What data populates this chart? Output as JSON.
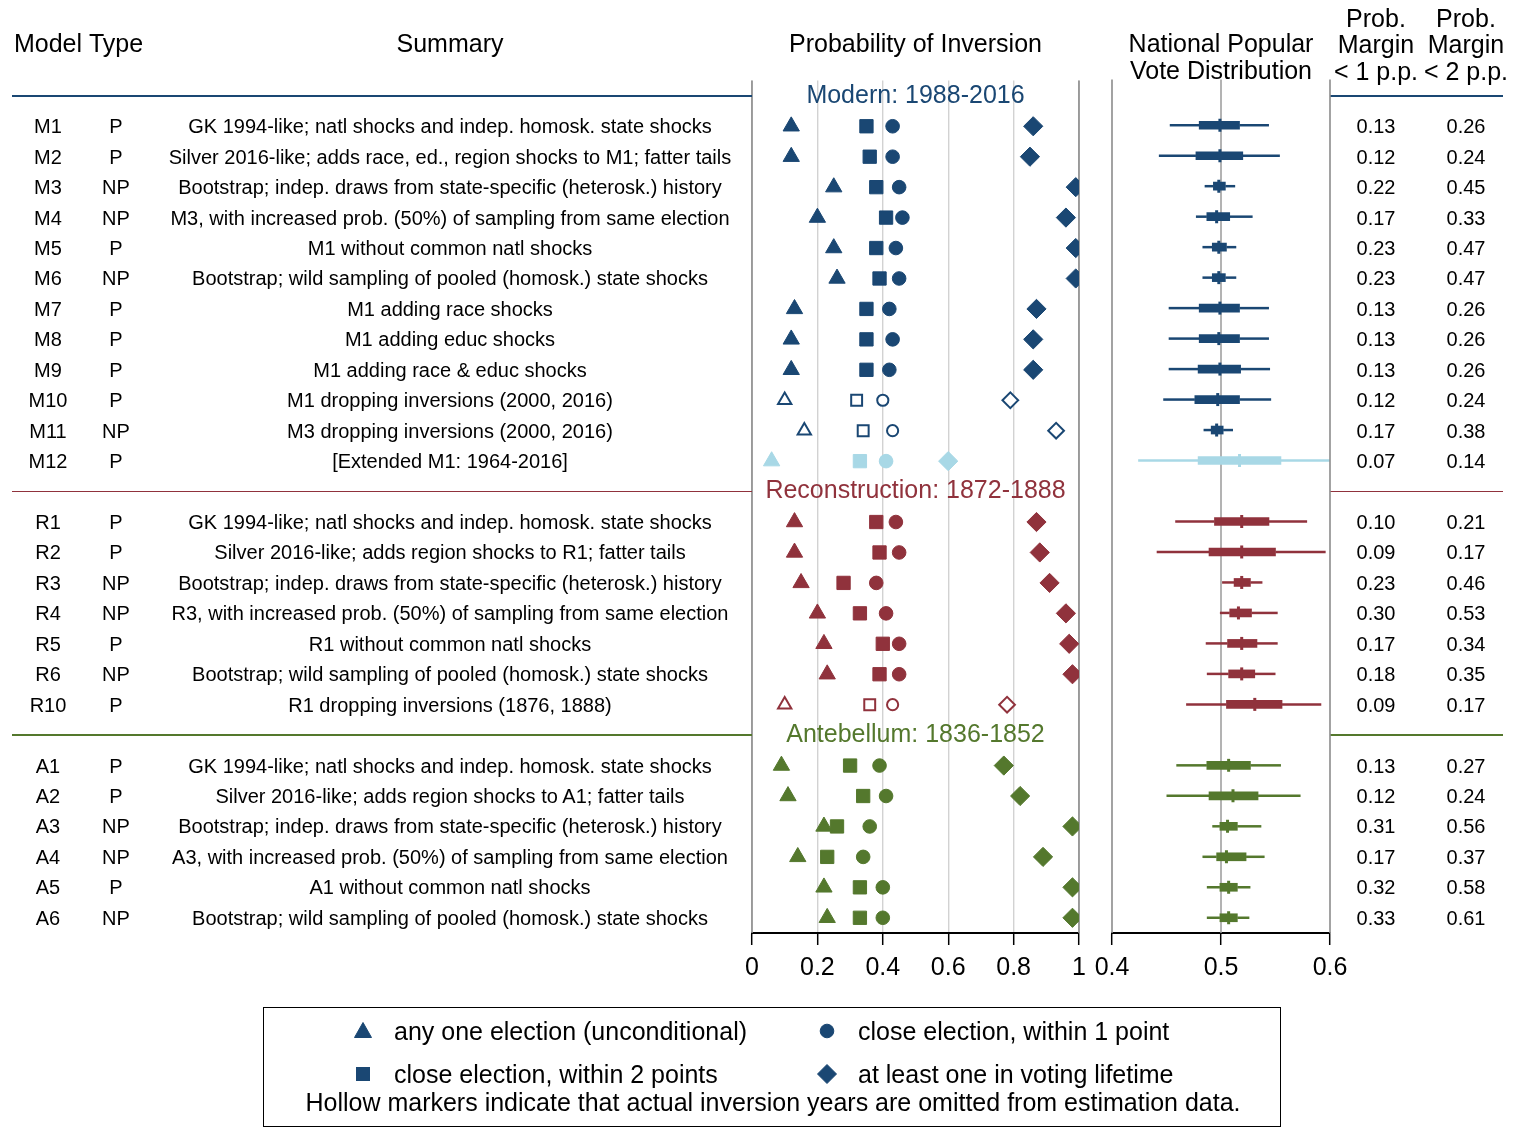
{
  "chart_data": [
    {
      "type": "other",
      "ylabel": "Model",
      "categories": [
        "Type",
        "Summary"
      ],
      "y_categories": [
        null,
        "M1",
        "M2",
        "M3",
        "M4",
        "M5",
        "M6",
        "M7",
        "M8",
        "M9",
        "M10",
        "M11",
        "M12",
        null,
        "R1",
        "R2",
        "R3",
        "R4",
        "R5",
        "R6",
        "R10",
        null,
        "A1",
        "A2",
        "A3",
        "A4",
        "A5",
        "A6"
      ],
      "cell_labels": [
        [
          null,
          null
        ],
        [
          "P",
          "GK 1994-like; natl shocks and indep. homosk. state shocks"
        ],
        [
          "P",
          "Silver 2016-like; adds race, ed., region shocks to M1; fatter tails"
        ],
        [
          "NP",
          "Bootstrap; indep. draws from state-specific (heterosk.) history"
        ],
        [
          "NP",
          "M3, with increased prob. (50%) of sampling from same election"
        ],
        [
          "P",
          "M1 without common natl shocks"
        ],
        [
          "NP",
          "Bootstrap; wild sampling of pooled (homosk.) state shocks"
        ],
        [
          "P",
          "M1 adding race shocks"
        ],
        [
          "P",
          "M1 adding educ shocks"
        ],
        [
          "P",
          "M1 adding race & educ shocks"
        ],
        [
          "P",
          "M1 dropping inversions (2000, 2016)"
        ],
        [
          "NP",
          "M3 dropping inversions (2000, 2016)"
        ],
        [
          "P",
          "[Extended M1: 1964-2016]"
        ],
        [
          null,
          null
        ],
        [
          "P",
          "GK 1994-like; natl shocks and indep. homosk. state shocks"
        ],
        [
          "P",
          "Silver 2016-like; adds region shocks to R1; fatter tails"
        ],
        [
          "NP",
          "Bootstrap; indep. draws from state-specific (heterosk.) history"
        ],
        [
          "NP",
          "R3, with increased prob. (50%) of sampling from same election"
        ],
        [
          "P",
          "R1 without common natl shocks"
        ],
        [
          "NP",
          "Bootstrap; wild sampling of pooled (homosk.) state shocks"
        ],
        [
          "P",
          "R1 dropping inversions (1876, 1888)"
        ],
        [
          null,
          null
        ],
        [
          "P",
          "GK 1994-like; natl shocks and indep. homosk. state shocks"
        ],
        [
          "P",
          "Silver 2016-like; adds region shocks to A1; fatter tails"
        ],
        [
          "NP",
          "Bootstrap; indep. draws from state-specific (heterosk.) history"
        ],
        [
          "NP",
          "A3, with increased prob. (50%) of sampling from same election"
        ],
        [
          "P",
          "A1 without common natl shocks"
        ],
        [
          "NP",
          "Bootstrap; wild sampling of pooled (homosk.) state shocks"
        ]
      ]
    },
    {
      "type": "scatter",
      "title": "Probability of Inversion",
      "orientation": "horizontal",
      "grid": "x",
      "legend": "bottom",
      "categories": [
        null,
        null,
        null,
        null,
        null,
        null,
        null,
        null,
        null,
        null,
        null,
        null,
        null,
        null,
        null,
        null,
        null,
        null,
        null,
        null,
        null,
        null,
        null,
        null,
        null,
        null,
        null,
        null
      ],
      "xlim": [
        0,
        1
      ],
      "xticks": [
        0,
        0.2,
        0.4,
        0.6,
        0.8,
        1
      ],
      "annotations": [
        "Modern: 1988-2016",
        "Reconstruction: 1872-1888",
        "Antebellum: 1836-1852",
        "Hollow markers indicate that actual inversion years are omitted from estimation data."
      ],
      "series": [
        {
          "name": "any one election (unconditional)",
          "marker": "triangle",
          "values": [
            null,
            0.12,
            0.12,
            0.25,
            0.2,
            0.25,
            0.26,
            0.13,
            0.12,
            0.12,
            null,
            null,
            0.06,
            null,
            0.13,
            0.13,
            0.15,
            0.2,
            0.22,
            0.23,
            null,
            null,
            0.09,
            0.11,
            0.22,
            0.14,
            0.22,
            0.23
          ],
          "colors": [
            null,
            "#1a4773",
            "#1a4773",
            "#1a4773",
            "#1a4773",
            "#1a4773",
            "#1a4773",
            "#1a4773",
            "#1a4773",
            "#1a4773",
            null,
            null,
            "#a8d8e6",
            null,
            "#90323c",
            "#90323c",
            "#90323c",
            "#90323c",
            "#90323c",
            "#90323c",
            null,
            null,
            "#54782d",
            "#54782d",
            "#54782d",
            "#54782d",
            "#54782d",
            "#54782d"
          ]
        },
        {
          "name": "close election, within 1 point",
          "marker": "circle",
          "values": [
            null,
            0.43,
            0.43,
            0.45,
            0.46,
            0.44,
            0.45,
            0.42,
            0.43,
            0.42,
            null,
            null,
            0.41,
            null,
            0.44,
            0.45,
            0.38,
            0.41,
            0.45,
            0.45,
            null,
            null,
            0.39,
            0.41,
            0.36,
            0.34,
            0.4,
            0.4
          ],
          "colors": [
            null,
            "#1a4773",
            "#1a4773",
            "#1a4773",
            "#1a4773",
            "#1a4773",
            "#1a4773",
            "#1a4773",
            "#1a4773",
            "#1a4773",
            null,
            null,
            "#a8d8e6",
            null,
            "#90323c",
            "#90323c",
            "#90323c",
            "#90323c",
            "#90323c",
            "#90323c",
            null,
            null,
            "#54782d",
            "#54782d",
            "#54782d",
            "#54782d",
            "#54782d",
            "#54782d"
          ]
        },
        {
          "name": "close election, within 2 points",
          "marker": "square",
          "values": [
            null,
            0.35,
            0.36,
            0.38,
            0.41,
            0.38,
            0.39,
            0.35,
            0.35,
            0.35,
            null,
            null,
            0.33,
            null,
            0.38,
            0.39,
            0.28,
            0.33,
            0.4,
            0.39,
            null,
            null,
            0.3,
            0.34,
            0.26,
            0.23,
            0.33,
            0.33
          ],
          "colors": [
            null,
            "#1a4773",
            "#1a4773",
            "#1a4773",
            "#1a4773",
            "#1a4773",
            "#1a4773",
            "#1a4773",
            "#1a4773",
            "#1a4773",
            null,
            null,
            "#a8d8e6",
            null,
            "#90323c",
            "#90323c",
            "#90323c",
            "#90323c",
            "#90323c",
            "#90323c",
            null,
            null,
            "#54782d",
            "#54782d",
            "#54782d",
            "#54782d",
            "#54782d",
            "#54782d"
          ]
        },
        {
          "name": "at least one in voting lifetime",
          "marker": "diamond",
          "values": [
            null,
            0.86,
            0.85,
            0.99,
            0.96,
            0.99,
            0.99,
            0.87,
            0.86,
            0.86,
            null,
            null,
            0.6,
            null,
            0.87,
            0.88,
            0.91,
            0.96,
            0.97,
            0.98,
            null,
            null,
            0.77,
            0.82,
            0.98,
            0.89,
            0.98,
            0.98
          ],
          "colors": [
            null,
            "#1a4773",
            "#1a4773",
            "#1a4773",
            "#1a4773",
            "#1a4773",
            "#1a4773",
            "#1a4773",
            "#1a4773",
            "#1a4773",
            null,
            null,
            "#a8d8e6",
            null,
            "#90323c",
            "#90323c",
            "#90323c",
            "#90323c",
            "#90323c",
            "#90323c",
            null,
            null,
            "#54782d",
            "#54782d",
            "#54782d",
            "#54782d",
            "#54782d",
            "#54782d"
          ]
        },
        {
          "marker": "triangle-open",
          "values": [
            null,
            null,
            null,
            null,
            null,
            null,
            null,
            null,
            null,
            null,
            0.1,
            0.16,
            null,
            null,
            null,
            null,
            null,
            null,
            null,
            null,
            0.1,
            null,
            null,
            null,
            null,
            null,
            null,
            null
          ],
          "colors": [
            null,
            null,
            null,
            null,
            null,
            null,
            null,
            null,
            null,
            null,
            "#1a4773",
            "#1a4773",
            null,
            null,
            null,
            null,
            null,
            null,
            null,
            null,
            "#90323c",
            null,
            null,
            null,
            null,
            null,
            null,
            null
          ]
        },
        {
          "marker": "circle-open",
          "values": [
            null,
            null,
            null,
            null,
            null,
            null,
            null,
            null,
            null,
            null,
            0.4,
            0.43,
            null,
            null,
            null,
            null,
            null,
            null,
            null,
            null,
            0.43,
            null,
            null,
            null,
            null,
            null,
            null,
            null
          ],
          "colors": [
            null,
            null,
            null,
            null,
            null,
            null,
            null,
            null,
            null,
            null,
            "#1a4773",
            "#1a4773",
            null,
            null,
            null,
            null,
            null,
            null,
            null,
            null,
            "#90323c",
            null,
            null,
            null,
            null,
            null,
            null,
            null
          ]
        },
        {
          "marker": "square-open",
          "values": [
            null,
            null,
            null,
            null,
            null,
            null,
            null,
            null,
            null,
            null,
            0.32,
            0.34,
            null,
            null,
            null,
            null,
            null,
            null,
            null,
            null,
            0.36,
            null,
            null,
            null,
            null,
            null,
            null,
            null
          ],
          "colors": [
            null,
            null,
            null,
            null,
            null,
            null,
            null,
            null,
            null,
            null,
            "#1a4773",
            "#1a4773",
            null,
            null,
            null,
            null,
            null,
            null,
            null,
            null,
            "#90323c",
            null,
            null,
            null,
            null,
            null,
            null,
            null
          ]
        },
        {
          "marker": "diamond-open",
          "values": [
            null,
            null,
            null,
            null,
            null,
            null,
            null,
            null,
            null,
            null,
            0.79,
            0.93,
            null,
            null,
            null,
            null,
            null,
            null,
            null,
            null,
            0.78,
            null,
            null,
            null,
            null,
            null,
            null,
            null
          ],
          "colors": [
            null,
            null,
            null,
            null,
            null,
            null,
            null,
            null,
            null,
            null,
            "#1a4773",
            "#1a4773",
            null,
            null,
            null,
            null,
            null,
            null,
            null,
            null,
            "#90323c",
            null,
            null,
            null,
            null,
            null,
            null,
            null
          ]
        }
      ]
    },
    {
      "type": "box",
      "title": "National Popular Vote Distribution",
      "orientation": "horizontal",
      "categories": [
        null,
        null,
        null,
        null,
        null,
        null,
        null,
        null,
        null,
        null,
        null,
        null,
        null,
        null,
        null,
        null,
        null,
        null,
        null,
        null,
        null,
        null,
        null,
        null,
        null,
        null,
        null,
        null
      ],
      "xlim": [
        0.4,
        0.6
      ],
      "xticks": [
        0.4,
        0.5,
        0.6
      ],
      "ref_lines": [
        {
          "axis": "x",
          "value": 0.5,
          "color": "#9a9a9a"
        }
      ],
      "colors": [
        null,
        "#1a4773",
        "#1a4773",
        "#1a4773",
        "#1a4773",
        "#1a4773",
        "#1a4773",
        "#1a4773",
        "#1a4773",
        "#1a4773",
        "#1a4773",
        "#1a4773",
        "#a8d8e6",
        null,
        "#90323c",
        "#90323c",
        "#90323c",
        "#90323c",
        "#90323c",
        "#90323c",
        "#90323c",
        null,
        "#54782d",
        "#54782d",
        "#54782d",
        "#54782d",
        "#54782d",
        "#54782d"
      ],
      "boxes": [
        null,
        {
          "low": 0.453,
          "q1": 0.48,
          "median": 0.499,
          "q3": 0.517,
          "high": 0.544
        },
        {
          "low": 0.443,
          "q1": 0.477,
          "median": 0.499,
          "q3": 0.52,
          "high": 0.554
        },
        {
          "low": 0.485,
          "q1": 0.493,
          "median": 0.498,
          "q3": 0.504,
          "high": 0.513
        },
        {
          "low": 0.477,
          "q1": 0.487,
          "median": 0.496,
          "q3": 0.508,
          "high": 0.529
        },
        {
          "low": 0.483,
          "q1": 0.492,
          "median": 0.498,
          "q3": 0.505,
          "high": 0.514
        },
        {
          "low": 0.483,
          "q1": 0.492,
          "median": 0.498,
          "q3": 0.504,
          "high": 0.514
        },
        {
          "low": 0.452,
          "q1": 0.48,
          "median": 0.499,
          "q3": 0.517,
          "high": 0.544
        },
        {
          "low": 0.452,
          "q1": 0.48,
          "median": 0.498,
          "q3": 0.517,
          "high": 0.544
        },
        {
          "low": 0.452,
          "q1": 0.479,
          "median": 0.499,
          "q3": 0.518,
          "high": 0.545
        },
        {
          "low": 0.447,
          "q1": 0.476,
          "median": 0.497,
          "q3": 0.517,
          "high": 0.546
        },
        {
          "low": 0.484,
          "q1": 0.491,
          "median": 0.496,
          "q3": 0.502,
          "high": 0.511
        },
        {
          "low": 0.424,
          "q1": 0.479,
          "median": 0.517,
          "q3": 0.555,
          "high": 0.6
        },
        null,
        {
          "low": 0.458,
          "q1": 0.494,
          "median": 0.519,
          "q3": 0.544,
          "high": 0.579
        },
        {
          "low": 0.441,
          "q1": 0.489,
          "median": 0.519,
          "q3": 0.55,
          "high": 0.596
        },
        {
          "low": 0.501,
          "q1": 0.512,
          "median": 0.519,
          "q3": 0.527,
          "high": 0.538
        },
        {
          "low": 0.499,
          "q1": 0.508,
          "median": 0.516,
          "q3": 0.528,
          "high": 0.552
        },
        {
          "low": 0.486,
          "q1": 0.506,
          "median": 0.519,
          "q3": 0.533,
          "high": 0.552
        },
        {
          "low": 0.487,
          "q1": 0.507,
          "median": 0.519,
          "q3": 0.531,
          "high": 0.55
        },
        {
          "low": 0.468,
          "q1": 0.505,
          "median": 0.531,
          "q3": 0.556,
          "high": 0.592
        },
        null,
        {
          "low": 0.459,
          "q1": 0.487,
          "median": 0.507,
          "q3": 0.527,
          "high": 0.555
        },
        {
          "low": 0.45,
          "q1": 0.489,
          "median": 0.511,
          "q3": 0.534,
          "high": 0.573
        },
        {
          "low": 0.492,
          "q1": 0.499,
          "median": 0.506,
          "q3": 0.515,
          "high": 0.537
        },
        {
          "low": 0.483,
          "q1": 0.496,
          "median": 0.505,
          "q3": 0.523,
          "high": 0.54
        },
        {
          "low": 0.487,
          "q1": 0.499,
          "median": 0.507,
          "q3": 0.515,
          "high": 0.527
        },
        {
          "low": 0.487,
          "q1": 0.499,
          "median": 0.507,
          "q3": 0.515,
          "high": 0.526
        }
      ]
    },
    {
      "type": "other",
      "categories": [
        "Prob. Margin < 1 p.p.",
        "Prob. Margin < 2 p.p."
      ],
      "cell_labels": [
        [
          null,
          null
        ],
        [
          "0.13",
          "0.26"
        ],
        [
          "0.12",
          "0.24"
        ],
        [
          "0.22",
          "0.45"
        ],
        [
          "0.17",
          "0.33"
        ],
        [
          "0.23",
          "0.47"
        ],
        [
          "0.23",
          "0.47"
        ],
        [
          "0.13",
          "0.26"
        ],
        [
          "0.13",
          "0.26"
        ],
        [
          "0.13",
          "0.26"
        ],
        [
          "0.12",
          "0.24"
        ],
        [
          "0.17",
          "0.38"
        ],
        [
          "0.07",
          "0.14"
        ],
        [
          null,
          null
        ],
        [
          "0.10",
          "0.21"
        ],
        [
          "0.09",
          "0.17"
        ],
        [
          "0.23",
          "0.46"
        ],
        [
          "0.30",
          "0.53"
        ],
        [
          "0.17",
          "0.34"
        ],
        [
          "0.18",
          "0.35"
        ],
        [
          "0.09",
          "0.17"
        ],
        [
          null,
          null
        ],
        [
          "0.13",
          "0.27"
        ],
        [
          "0.12",
          "0.24"
        ],
        [
          "0.31",
          "0.56"
        ],
        [
          "0.17",
          "0.37"
        ],
        [
          "0.32",
          "0.58"
        ],
        [
          "0.33",
          "0.61"
        ]
      ]
    }
  ]
}
